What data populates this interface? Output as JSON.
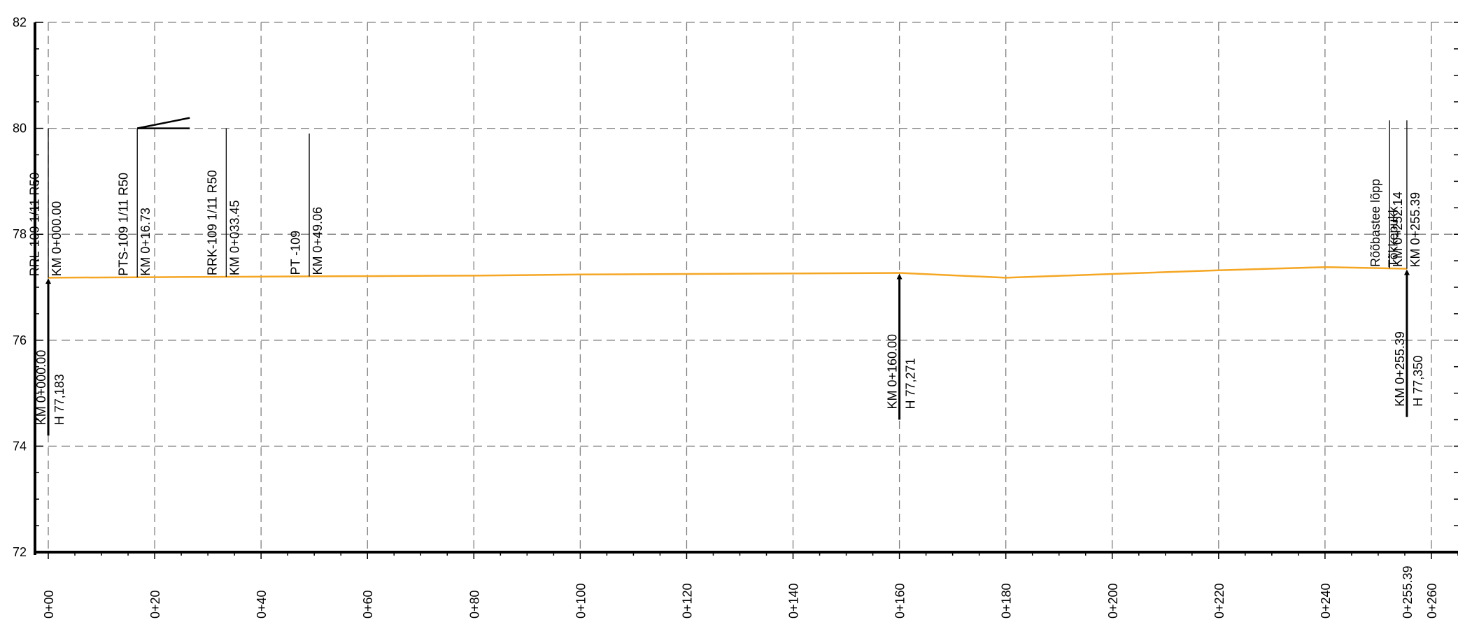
{
  "chart_data": {
    "type": "line",
    "x_unit": "m",
    "xlim": [
      -2.5,
      265
    ],
    "ylim": [
      72,
      82
    ],
    "grid": true,
    "y_ticks": [
      {
        "value": 72,
        "label": "72"
      },
      {
        "value": 74,
        "label": "74"
      },
      {
        "value": 76,
        "label": "76"
      },
      {
        "value": 78,
        "label": "78"
      },
      {
        "value": 80,
        "label": "80"
      },
      {
        "value": 82,
        "label": "82"
      }
    ],
    "x_ticks": [
      {
        "value": 0,
        "label": "0+00"
      },
      {
        "value": 20,
        "label": "0+20"
      },
      {
        "value": 40,
        "label": "0+40"
      },
      {
        "value": 60,
        "label": "0+60"
      },
      {
        "value": 80,
        "label": "0+80"
      },
      {
        "value": 100,
        "label": "0+100"
      },
      {
        "value": 120,
        "label": "0+120"
      },
      {
        "value": 140,
        "label": "0+140"
      },
      {
        "value": 160,
        "label": "0+160"
      },
      {
        "value": 180,
        "label": "0+180"
      },
      {
        "value": 200,
        "label": "0+200"
      },
      {
        "value": 220,
        "label": "0+220"
      },
      {
        "value": 240,
        "label": "0+240"
      },
      {
        "value": 255.39,
        "label": "0+255.39"
      },
      {
        "value": 260,
        "label": "0+260"
      }
    ],
    "series": [
      {
        "color": "#f5a623",
        "x": [
          0,
          20,
          40,
          60,
          80,
          100,
          120,
          140,
          160,
          180,
          200,
          220,
          240,
          255.39
        ],
        "y": [
          77.18,
          77.19,
          77.2,
          77.21,
          77.22,
          77.24,
          77.25,
          77.26,
          77.27,
          77.18,
          77.25,
          77.32,
          77.38,
          77.35
        ]
      }
    ],
    "upper_annotations": [
      {
        "x": 0,
        "x_text": -1.8,
        "top": 80.0,
        "lines": [
          "RRL-109 1/11 R50",
          "KM 0+000.00"
        ]
      },
      {
        "x": 16.73,
        "x_text": 14.9,
        "top": 80.0,
        "lines": [
          "PTS-109 1/11 R50",
          "KM 0+16.73"
        ],
        "flag": true
      },
      {
        "x": 33.45,
        "x_text": 31.6,
        "top": 80.0,
        "lines": [
          "RRK-109 1/11 R50",
          "KM 0+033.45"
        ]
      },
      {
        "x": 49.06,
        "x_text": 47.3,
        "top": 79.9,
        "lines": [
          "PT -109",
          "KM 0+49.06"
        ]
      },
      {
        "x": 252.14,
        "x_text": 250.3,
        "top": 80.15,
        "lines": [
          "Rõõbastee lõpp",
          "KM 0+252.14"
        ]
      },
      {
        "x": 255.39,
        "x_text": 253.6,
        "top": 80.15,
        "lines": [
          "Tõkkepukk",
          "KM 0+255.39"
        ]
      }
    ],
    "lower_annotations": [
      {
        "x": 0,
        "y": 77.183,
        "bottom": 74.2,
        "lines": [
          "KM 0+000.00",
          "H 77,183"
        ]
      },
      {
        "x": 160,
        "y": 77.271,
        "bottom": 74.5,
        "lines": [
          "KM 0+160.00",
          "H 77,271"
        ]
      },
      {
        "x": 255.39,
        "y": 77.35,
        "bottom": 74.55,
        "lines": [
          "KM 0+255.39",
          "H 77,350"
        ]
      }
    ]
  }
}
